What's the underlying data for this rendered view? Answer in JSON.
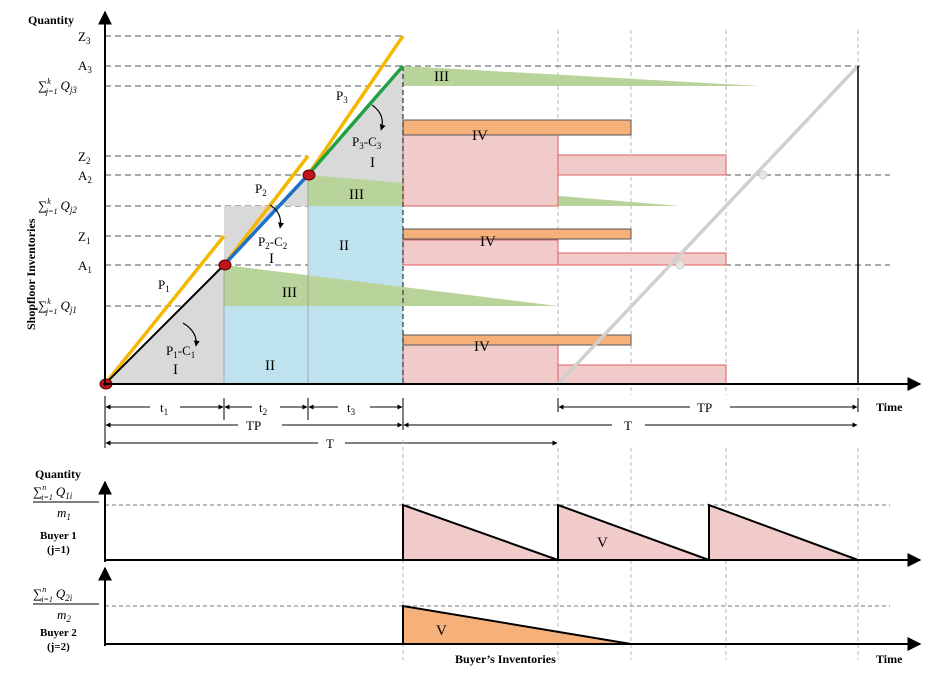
{
  "top_chart": {
    "y_axis_title": "Quantity",
    "vertical_label": "Shopfloor Inventories",
    "x_axis_title": "Time",
    "y_levels": {
      "Z3": "Z",
      "Z3_sub": "3",
      "A3": "A",
      "A3_sub": "3",
      "sum3": "∑",
      "sum3_sup": "k",
      "sum3_low": "j=1",
      "sum3_q": "Q",
      "sum3_sub": "j3",
      "Z2": "Z",
      "Z2_sub": "2",
      "A2": "A",
      "A2_sub": "2",
      "sum2": "∑",
      "sum2_sup": "k",
      "sum2_low": "j=1",
      "sum2_q": "Q",
      "sum2_sub": "j2",
      "Z1": "Z",
      "Z1_sub": "1",
      "A1": "A",
      "A1_sub": "1",
      "sum1": "∑",
      "sum1_sup": "k",
      "sum1_low": "j=1",
      "sum1_q": "Q",
      "sum1_sub": "j1"
    },
    "line_labels": {
      "P1": "P",
      "P1_sub": "1",
      "P2": "P",
      "P2_sub": "2",
      "P3": "P",
      "P3_sub": "3",
      "PC1": "P",
      "PC1_a": "1",
      "PC1_mid": "-C",
      "PC1_b": "1",
      "PC2": "P",
      "PC2_a": "2",
      "PC2_mid": "-C",
      "PC2_b": "2",
      "PC3": "P",
      "PC3_a": "3",
      "PC3_mid": "-C",
      "PC3_b": "3"
    },
    "region_labels": {
      "I_1": "I",
      "I_2": "I",
      "I_3": "I",
      "II_1": "II",
      "II_2": "II",
      "III_1": "III",
      "III_2": "III",
      "III_3": "III",
      "IV_1": "IV",
      "IV_2": "IV",
      "IV_3": "IV"
    },
    "spans": {
      "t1": "t",
      "t1_sub": "1",
      "t2": "t",
      "t2_sub": "2",
      "t3": "t",
      "t3_sub": "3",
      "TP_left": "TP",
      "TP_right": "TP",
      "T_right": "T",
      "T_left": "T"
    }
  },
  "bottom_chart": {
    "y_axis_title": "Quantity",
    "x_axis_title": "Time",
    "caption": "Buyer’s Inventories",
    "buyer1": {
      "sum": "∑",
      "sup": "n",
      "low": "i=1",
      "q": "Q",
      "q_sub": "1i",
      "m": "m",
      "m_sub": "1",
      "label": "Buyer 1",
      "label2": "(j=1)",
      "region": "V"
    },
    "buyer2": {
      "sum": "∑",
      "sup": "n",
      "low": "i=1",
      "q": "Q",
      "q_sub": "2i",
      "m": "m",
      "m_sub": "2",
      "label": "Buyer 2",
      "label2": "(j=2)",
      "region": "V"
    }
  },
  "colors": {
    "yellow": "#F5B800",
    "blue": "#1E6FC8",
    "green": "#22A046",
    "grey_region": "#D9D9D9",
    "blue_region": "#BFE3EE",
    "green_region": "#B9D49A",
    "pink_region": "#F1CACA",
    "orange_region": "#F6B07A",
    "dot": "#C0161B"
  }
}
